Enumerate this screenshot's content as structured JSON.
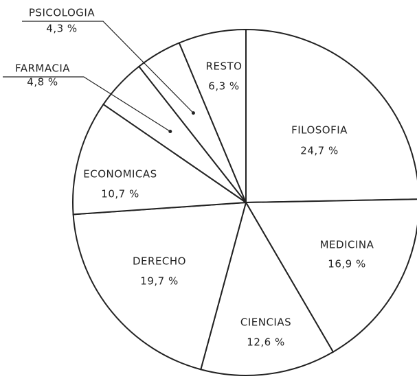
{
  "chart_data": {
    "type": "pie",
    "categories": [
      "FILOSOFIA",
      "MEDICINA",
      "CIENCIAS",
      "DERECHO",
      "ECONOMICAS",
      "FARMACIA",
      "PSICOLOGIA",
      "RESTO"
    ],
    "values": [
      24.7,
      16.9,
      12.6,
      19.7,
      10.7,
      4.8,
      4.3,
      6.3
    ],
    "value_labels": [
      "24,7 %",
      "16,9 %",
      "12,6 %",
      "19,7 %",
      "10,7 %",
      "4,8 %",
      "4,3 %",
      "6,3 %"
    ],
    "color": "#ffffff"
  }
}
